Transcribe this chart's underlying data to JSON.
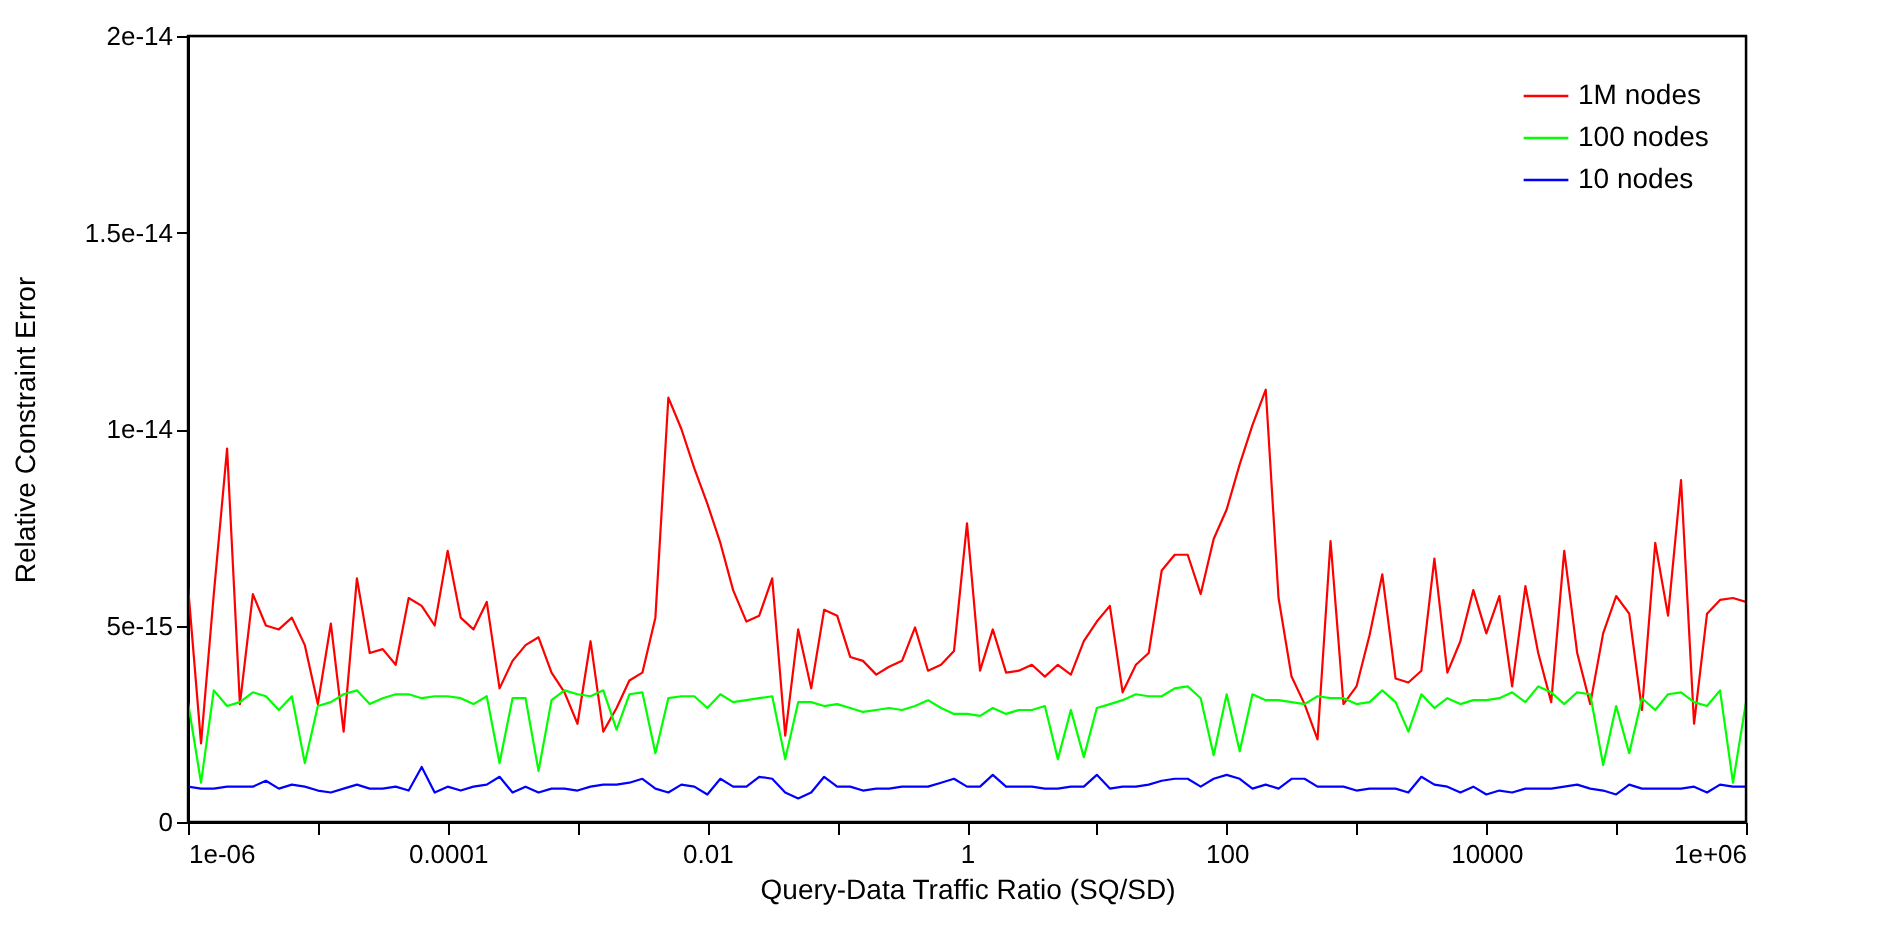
{
  "chart_data": {
    "type": "line",
    "xlabel": "Query-Data Traffic Ratio (SQ/SD)",
    "ylabel": "Relative Constraint Error",
    "log": "x",
    "grid": false,
    "legend": "top right",
    "marker": "none",
    "line_style": "solid",
    "xlim": [
      1e-06,
      1000000.0
    ],
    "ylim": [
      0,
      2e-14
    ],
    "xticks": [
      {
        "value": 1e-06,
        "label": "1e-06"
      },
      {
        "value": 1e-05,
        "label": null
      },
      {
        "value": 0.0001,
        "label": "0.0001"
      },
      {
        "value": 0.001,
        "label": null
      },
      {
        "value": 0.01,
        "label": "0.01"
      },
      {
        "value": 0.1,
        "label": null
      },
      {
        "value": 1,
        "label": "1"
      },
      {
        "value": 10,
        "label": null
      },
      {
        "value": 100,
        "label": "100"
      },
      {
        "value": 1000,
        "label": null
      },
      {
        "value": 10000,
        "label": "10000"
      },
      {
        "value": 100000.0,
        "label": null
      },
      {
        "value": 1000000.0,
        "label": "1e+06"
      }
    ],
    "yticks": [
      0,
      {
        "value": 5e-15,
        "label": "5e-15"
      },
      {
        "value": 1e-14,
        "label": "1e-14"
      },
      {
        "value": 1.5e-14,
        "label": "1.5e-14"
      },
      {
        "value": 2e-14,
        "label": "2e-14"
      }
    ],
    "x": [
      1e-06,
      1.26e-06,
      1.58e-06,
      2e-06,
      2.51e-06,
      3.16e-06,
      3.98e-06,
      5.01e-06,
      6.31e-06,
      7.94e-06,
      1e-05,
      1.26e-05,
      1.58e-05,
      2e-05,
      2.51e-05,
      3.16e-05,
      3.98e-05,
      5.01e-05,
      6.31e-05,
      7.94e-05,
      0.0001,
      0.000126,
      0.000158,
      0.0002,
      0.000251,
      0.000316,
      0.000398,
      0.000501,
      0.000631,
      0.000794,
      0.001,
      0.00126,
      0.00158,
      0.002,
      0.00251,
      0.00316,
      0.00398,
      0.00501,
      0.00631,
      0.00794,
      0.01,
      0.0126,
      0.0158,
      0.02,
      0.0251,
      0.0316,
      0.0398,
      0.0501,
      0.0631,
      0.0794,
      0.1,
      0.126,
      0.158,
      0.2,
      0.251,
      0.316,
      0.398,
      0.501,
      0.631,
      0.794,
      1,
      1.26,
      1.58,
      2,
      2.51,
      3.16,
      3.98,
      5.01,
      6.31,
      7.94,
      10,
      12.6,
      15.8,
      20,
      25.1,
      31.6,
      39.8,
      50.1,
      63.1,
      79.4,
      100,
      126,
      158,
      200,
      251,
      316,
      398,
      501,
      631,
      794,
      1000,
      1260,
      1580,
      2000,
      2510,
      3160,
      3980,
      5010,
      6310,
      7940,
      10000,
      12600,
      15800,
      20000,
      25100,
      31600,
      39800,
      50100,
      63100,
      79400,
      100000,
      126000,
      158000,
      200000,
      251000,
      316000,
      398000,
      501000,
      631000,
      794000,
      1000000
    ],
    "series": [
      {
        "name": "1M nodes",
        "color": "#ff0000",
        "values": [
          6e-15,
          2e-15,
          5.8e-15,
          9.5e-15,
          3e-15,
          5.8e-15,
          5e-15,
          4.9e-15,
          5.2e-15,
          4.5e-15,
          3e-15,
          5.05e-15,
          2.3e-15,
          6.2e-15,
          4.3e-15,
          4.4e-15,
          4e-15,
          5.7e-15,
          5.5e-15,
          5e-15,
          6.9e-15,
          5.2e-15,
          4.9e-15,
          5.6e-15,
          3.4e-15,
          4.1e-15,
          4.5e-15,
          4.7e-15,
          3.8e-15,
          3.3e-15,
          2.5e-15,
          4.6e-15,
          2.3e-15,
          2.9e-15,
          3.6e-15,
          3.8e-15,
          5.2e-15,
          1.08e-14,
          1e-14,
          9e-15,
          8.1e-15,
          7.1e-15,
          5.9e-15,
          5.1e-15,
          5.25e-15,
          6.2e-15,
          2.2e-15,
          4.9e-15,
          3.4e-15,
          5.4e-15,
          5.25e-15,
          4.2e-15,
          4.1e-15,
          3.75e-15,
          3.95e-15,
          4.1e-15,
          4.95e-15,
          3.85e-15,
          4e-15,
          4.35e-15,
          7.6e-15,
          3.85e-15,
          4.9e-15,
          3.8e-15,
          3.85e-15,
          4e-15,
          3.7e-15,
          4e-15,
          3.75e-15,
          4.6e-15,
          5.1e-15,
          5.5e-15,
          3.3e-15,
          4e-15,
          4.3e-15,
          6.4e-15,
          6.8e-15,
          6.8e-15,
          5.8e-15,
          7.2e-15,
          7.95e-15,
          9.1e-15,
          1.01e-14,
          1.1e-14,
          5.7e-15,
          3.7e-15,
          3e-15,
          2.1e-15,
          7.15e-15,
          3e-15,
          3.45e-15,
          4.75e-15,
          6.3e-15,
          3.65e-15,
          3.55e-15,
          3.85e-15,
          6.7e-15,
          3.8e-15,
          4.6e-15,
          5.9e-15,
          4.8e-15,
          5.75e-15,
          3.45e-15,
          6e-15,
          4.3e-15,
          3.05e-15,
          6.9e-15,
          4.3e-15,
          3e-15,
          4.8e-15,
          5.75e-15,
          5.3e-15,
          2.85e-15,
          7.1e-15,
          5.25e-15,
          8.7e-15,
          2.5e-15,
          5.3e-15,
          5.65e-15,
          5.7e-15,
          5.6e-15
        ]
      },
      {
        "name": "100 nodes",
        "color": "#00ff00",
        "values": [
          3.05e-15,
          1e-15,
          3.35e-15,
          2.95e-15,
          3.05e-15,
          3.3e-15,
          3.2e-15,
          2.85e-15,
          3.2e-15,
          1.5e-15,
          2.95e-15,
          3.05e-15,
          3.25e-15,
          3.35e-15,
          3e-15,
          3.15e-15,
          3.25e-15,
          3.25e-15,
          3.15e-15,
          3.2e-15,
          3.2e-15,
          3.15e-15,
          3e-15,
          3.2e-15,
          1.5e-15,
          3.15e-15,
          3.15e-15,
          1.3e-15,
          3.1e-15,
          3.35e-15,
          3.25e-15,
          3.2e-15,
          3.35e-15,
          2.35e-15,
          3.25e-15,
          3.3e-15,
          1.75e-15,
          3.15e-15,
          3.2e-15,
          3.2e-15,
          2.9e-15,
          3.25e-15,
          3.05e-15,
          3.1e-15,
          3.15e-15,
          3.2e-15,
          1.6e-15,
          3.05e-15,
          3.05e-15,
          2.95e-15,
          3e-15,
          2.9e-15,
          2.8e-15,
          2.85e-15,
          2.9e-15,
          2.85e-15,
          2.95e-15,
          3.1e-15,
          2.9e-15,
          2.75e-15,
          2.75e-15,
          2.7e-15,
          2.9e-15,
          2.75e-15,
          2.85e-15,
          2.85e-15,
          2.95e-15,
          1.6e-15,
          2.85e-15,
          1.65e-15,
          2.9e-15,
          3e-15,
          3.1e-15,
          3.25e-15,
          3.2e-15,
          3.2e-15,
          3.4e-15,
          3.45e-15,
          3.15e-15,
          1.7e-15,
          3.25e-15,
          1.8e-15,
          3.25e-15,
          3.1e-15,
          3.1e-15,
          3.05e-15,
          3e-15,
          3.2e-15,
          3.15e-15,
          3.15e-15,
          3e-15,
          3.05e-15,
          3.35e-15,
          3.05e-15,
          2.3e-15,
          3.25e-15,
          2.9e-15,
          3.15e-15,
          3e-15,
          3.1e-15,
          3.1e-15,
          3.15e-15,
          3.3e-15,
          3.05e-15,
          3.45e-15,
          3.3e-15,
          3e-15,
          3.3e-15,
          3.25e-15,
          1.45e-15,
          2.95e-15,
          1.75e-15,
          3.15e-15,
          2.85e-15,
          3.25e-15,
          3.3e-15,
          3.05e-15,
          2.95e-15,
          3.35e-15,
          1e-15,
          3.05e-15
        ]
      },
      {
        "name": "10 nodes",
        "color": "#0000ff",
        "values": [
          9e-16,
          8.5e-16,
          8.5e-16,
          9e-16,
          9e-16,
          9e-16,
          1.05e-15,
          8.5e-16,
          9.5e-16,
          9e-16,
          8e-16,
          7.5e-16,
          8.5e-16,
          9.5e-16,
          8.5e-16,
          8.5e-16,
          9e-16,
          8e-16,
          1.4e-15,
          7.5e-16,
          9e-16,
          8e-16,
          9e-16,
          9.5e-16,
          1.15e-15,
          7.5e-16,
          9e-16,
          7.5e-16,
          8.5e-16,
          8.5e-16,
          8e-16,
          9e-16,
          9.5e-16,
          9.5e-16,
          1e-15,
          1.1e-15,
          8.5e-16,
          7.5e-16,
          9.5e-16,
          9e-16,
          7e-16,
          1.1e-15,
          9e-16,
          9e-16,
          1.15e-15,
          1.1e-15,
          7.5e-16,
          6e-16,
          7.5e-16,
          1.15e-15,
          9e-16,
          9e-16,
          8e-16,
          8.5e-16,
          8.5e-16,
          9e-16,
          9e-16,
          9e-16,
          1e-15,
          1.1e-15,
          9e-16,
          9e-16,
          1.2e-15,
          9e-16,
          9e-16,
          9e-16,
          8.5e-16,
          8.5e-16,
          9e-16,
          9e-16,
          1.2e-15,
          8.5e-16,
          9e-16,
          9e-16,
          9.5e-16,
          1.05e-15,
          1.1e-15,
          1.1e-15,
          9e-16,
          1.1e-15,
          1.2e-15,
          1.1e-15,
          8.5e-16,
          9.5e-16,
          8.5e-16,
          1.1e-15,
          1.1e-15,
          9e-16,
          9e-16,
          9e-16,
          8e-16,
          8.5e-16,
          8.5e-16,
          8.5e-16,
          7.5e-16,
          1.15e-15,
          9.5e-16,
          9e-16,
          7.5e-16,
          9e-16,
          7e-16,
          8e-16,
          7.5e-16,
          8.5e-16,
          8.5e-16,
          8.5e-16,
          9e-16,
          9.5e-16,
          8.5e-16,
          8e-16,
          7e-16,
          9.5e-16,
          8.5e-16,
          8.5e-16,
          8.5e-16,
          8.5e-16,
          9e-16,
          7.5e-16,
          9.5e-16,
          9e-16,
          9e-16
        ]
      }
    ]
  }
}
